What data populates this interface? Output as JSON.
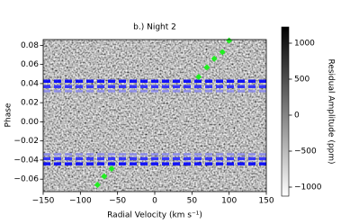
{
  "chart_data": {
    "type": "heatmap",
    "title": "b.) Night 2",
    "xlabel": "Radial Velocity (km s⁻¹)",
    "ylabel": "Phase",
    "colorbar_label": "Residual Amplitude (ppm)",
    "xlim": [
      -150,
      150
    ],
    "xticks": [
      {
        "value": -150,
        "label": "−150"
      },
      {
        "value": -100,
        "label": "−100"
      },
      {
        "value": -50,
        "label": "−50"
      },
      0,
      50,
      100,
      150
    ],
    "ylim": [
      -0.073,
      0.086
    ],
    "yticks": [
      {
        "value": -0.06,
        "label": "−0.06"
      },
      {
        "value": -0.04,
        "label": "−0.04"
      },
      {
        "value": -0.02,
        "label": "−0.02"
      },
      {
        "value": 0,
        "label": "0.00"
      },
      0.02,
      0.04,
      0.06,
      0.08
    ],
    "clim": [
      -1125,
      1225
    ],
    "cticks": [
      {
        "value": -1000,
        "label": "−1000"
      },
      {
        "value": -500,
        "label": "−500"
      },
      0,
      500,
      1000
    ],
    "hlines": [
      {
        "y": 0.0425,
        "color": "#0000ff",
        "width": 3.5
      },
      {
        "y": 0.0368,
        "color": "#2a2aff",
        "width": 3.5
      },
      {
        "y": 0.032,
        "color": "#8a8aee",
        "width": 2.5
      },
      {
        "y": -0.034,
        "color": "#8a8aee",
        "width": 2.5
      },
      {
        "y": -0.0385,
        "color": "#2a2aff",
        "width": 3.5
      },
      {
        "y": -0.044,
        "color": "#0000ff",
        "width": 3.5
      }
    ],
    "markers": {
      "color": "#22ee22",
      "x": [
        100,
        91,
        80,
        70,
        59,
        -58,
        -68,
        -77
      ],
      "y": [
        0.085,
        0.073,
        0.066,
        0.057,
        0.047,
        -0.049,
        -0.057,
        -0.066
      ]
    }
  }
}
